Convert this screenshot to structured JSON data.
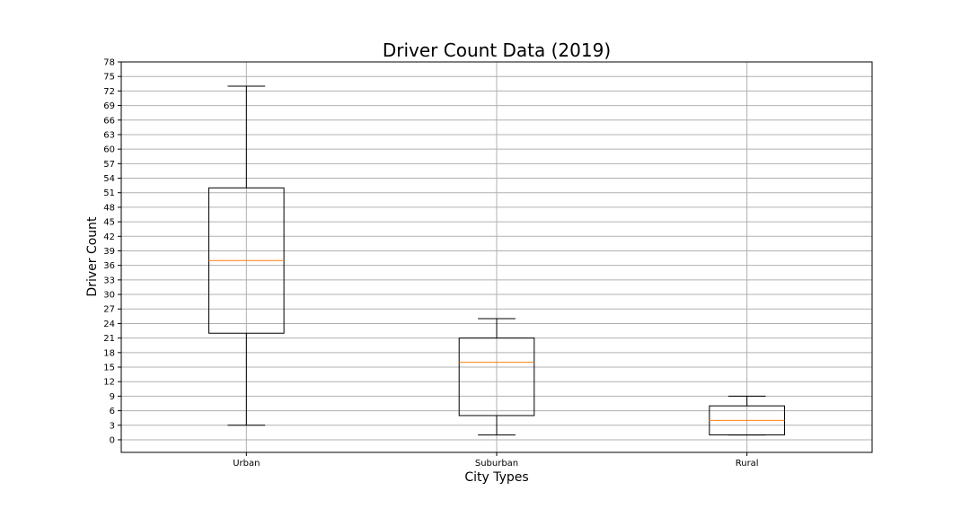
{
  "chart_data": {
    "type": "box",
    "title": "Driver Count Data (2019)",
    "xlabel": "City Types",
    "ylabel": "Driver Count",
    "ylim": [
      -2.6,
      78
    ],
    "yticks": [
      0,
      3,
      6,
      9,
      12,
      15,
      18,
      21,
      24,
      27,
      30,
      33,
      36,
      39,
      42,
      45,
      48,
      51,
      54,
      57,
      60,
      63,
      66,
      69,
      72,
      75,
      78
    ],
    "grid": true,
    "categories": [
      "Urban",
      "Suburban",
      "Rural"
    ],
    "boxes": [
      {
        "category": "Urban",
        "whisker_low": 3,
        "q1": 22,
        "median": 37,
        "q3": 52,
        "whisker_high": 73
      },
      {
        "category": "Suburban",
        "whisker_low": 1,
        "q1": 5,
        "median": 16,
        "q3": 21,
        "whisker_high": 25
      },
      {
        "category": "Rural",
        "whisker_low": 1,
        "q1": 1,
        "median": 4,
        "q3": 7,
        "whisker_high": 9
      }
    ],
    "colors": {
      "box": "#000000",
      "median": "#ff7f0e",
      "grid": "#b0b0b0"
    }
  }
}
